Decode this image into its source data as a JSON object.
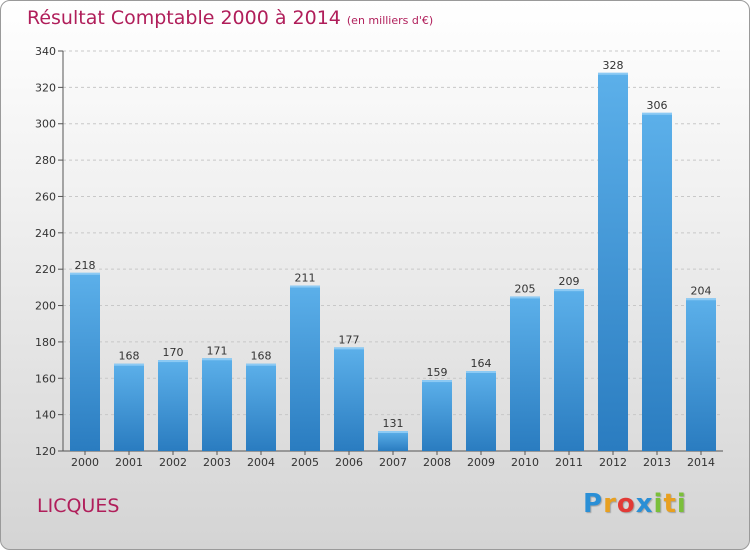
{
  "header": {
    "title": "Résultat Comptable 2000 à 2014",
    "unit": "(en milliers d'€)"
  },
  "footer": {
    "commune": "LICQUES",
    "logo_letters": [
      "P",
      "r",
      "o",
      "x",
      "i",
      "t",
      "i"
    ],
    "logo_colors": [
      "#2a8fd6",
      "#e8a020",
      "#e23a36",
      "#2a8fd6",
      "#7bbf3a",
      "#e8a020",
      "#7bbf3a"
    ]
  },
  "chart_data": {
    "type": "bar",
    "title": "Résultat Comptable 2000 à 2014",
    "subtitle": "(en milliers d'€)",
    "xlabel": "",
    "ylabel": "",
    "categories": [
      "2000",
      "2001",
      "2002",
      "2003",
      "2004",
      "2005",
      "2006",
      "2007",
      "2008",
      "2009",
      "2010",
      "2011",
      "2012",
      "2013",
      "2014"
    ],
    "values": [
      218,
      168,
      170,
      171,
      168,
      211,
      177,
      131,
      159,
      164,
      205,
      209,
      328,
      306,
      204
    ],
    "ylim": [
      120,
      340
    ],
    "yticks": [
      120,
      140,
      160,
      180,
      200,
      220,
      240,
      260,
      280,
      300,
      320,
      340
    ],
    "grid": true,
    "bar_color": "#4c9fdf"
  }
}
